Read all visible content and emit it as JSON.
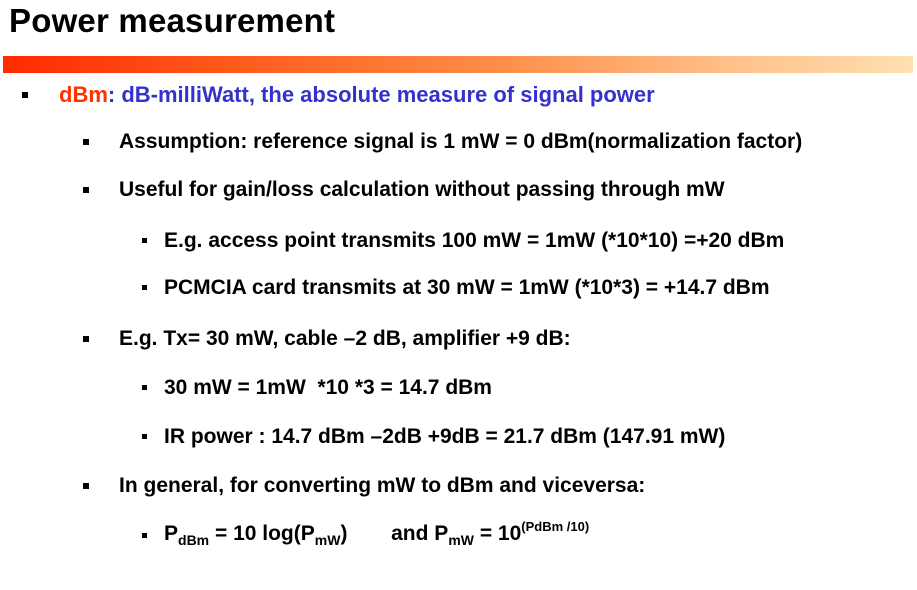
{
  "title": "Power measurement",
  "colors": {
    "title": "#000000",
    "accent": "#ff3300",
    "level1_text": "#3333cc",
    "bar_start": "#ff2a00",
    "bar_end": "#ffe0b0"
  },
  "bullets": {
    "b1": {
      "term": "dBm",
      "rest": ": dB-milliWatt, the absolute measure of signal power"
    },
    "b2": "Assumption: reference signal is 1 mW = 0 dBm(normalization factor)",
    "b3": "Useful for gain/loss calculation without passing through mW",
    "b4": "E.g. access point transmits 100 mW = 1mW (*10*10) =+20 dBm",
    "b5": "PCMCIA card transmits at 30 mW = 1mW (*10*3) = +14.7 dBm",
    "b6": "E.g. Tx= 30 mW, cable –2 dB, amplifier +9 dB:",
    "b7": "30 mW = 1mW  *10 *3 = 14.7 dBm",
    "b8": "IR power : 14.7 dBm –2dB +9dB = 21.7 dBm (147.91 mW)",
    "b9": "In general, for converting mW to dBm and viceversa:",
    "b10": {
      "p1": "P",
      "p1_sub": "dBm",
      "eq1": " = 10 log(P",
      "p2_sub": "mW",
      "close1": ")",
      "gap": "and P",
      "p3_sub": "mW",
      "eq2": " = 10",
      "exp": "(PdBm /10)"
    }
  }
}
